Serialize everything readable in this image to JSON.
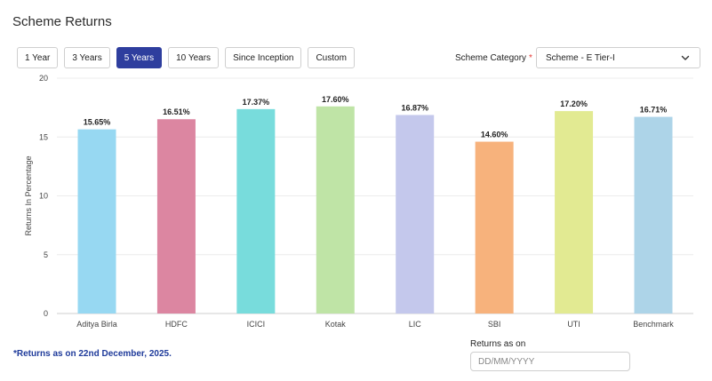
{
  "header": {
    "title": "Scheme Returns"
  },
  "period_buttons": [
    {
      "label": "1 Year",
      "active": false
    },
    {
      "label": "3 Years",
      "active": false
    },
    {
      "label": "5 Years",
      "active": true
    },
    {
      "label": "10 Years",
      "active": false
    },
    {
      "label": "Since Inception",
      "active": false
    },
    {
      "label": "Custom",
      "active": false
    }
  ],
  "category": {
    "label": "Scheme Category",
    "required_mark": "*",
    "selected": "Scheme - E Tier-I"
  },
  "footer": {
    "note": "*Returns as on 22nd December, 2025.",
    "returns_as_on_label": "Returns as on",
    "date_placeholder": "DD/MM/YYYY"
  },
  "chart_data": {
    "type": "bar",
    "title": "",
    "xlabel": "",
    "ylabel": "Returns In Percentage",
    "ylim": [
      0,
      20
    ],
    "yticks": [
      0,
      5,
      10,
      15,
      20
    ],
    "grid": true,
    "categories": [
      "Aditya Birla",
      "HDFC",
      "ICICI",
      "Kotak",
      "LIC",
      "SBI",
      "UTI",
      "Benchmark"
    ],
    "values": [
      15.65,
      16.51,
      17.37,
      17.6,
      16.87,
      14.6,
      17.2,
      16.71
    ],
    "data_labels": [
      "15.65%",
      "16.51%",
      "17.37%",
      "17.60%",
      "16.87%",
      "14.60%",
      "17.20%",
      "16.71%"
    ],
    "colors": [
      "#97d8f2",
      "#dc86a1",
      "#78dcdc",
      "#bfe4a6",
      "#c4c8ec",
      "#f7b27c",
      "#e2ea92",
      "#add4e8"
    ]
  }
}
